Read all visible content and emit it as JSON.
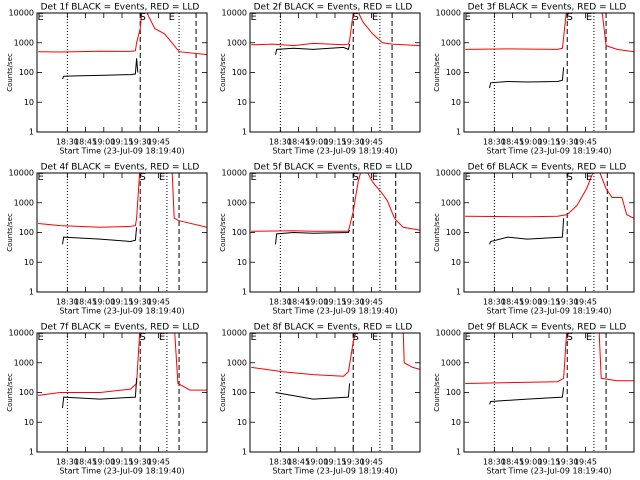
{
  "chart_data": [
    {
      "type": "line",
      "title": "Det 1f BLACK = Events, RED = LLD",
      "ylabel": "Counts/sec",
      "xlabel": "Start Time (23-Jul-09 18:19:40)",
      "xlim": [
        "18:05",
        "20:25"
      ],
      "xticks": [
        "18:30",
        "18:45",
        "19:00",
        "19:15",
        "19:30",
        "19:45"
      ],
      "ylim": [
        1,
        10000
      ],
      "yticks": [
        1,
        10,
        100,
        1000,
        10000
      ],
      "log_y": true,
      "vlines": [
        {
          "x": "18:30",
          "style": "dotted"
        },
        {
          "x": "19:30",
          "style": "dashed"
        },
        {
          "x": "20:02",
          "style": "dotted"
        },
        {
          "x": "20:16",
          "style": "dashed"
        }
      ],
      "annotations": [
        {
          "text": "E",
          "x": "18:08"
        },
        {
          "text": "S",
          "x": "19:32"
        },
        {
          "text": "E",
          "x": "19:56"
        }
      ],
      "series": [
        {
          "color": "#ff0000",
          "x": [
            "18:06",
            "18:24",
            "18:57",
            "19:22",
            "19:26",
            "19:27",
            "19:30",
            "19:32",
            "19:42",
            "19:50",
            "19:58",
            "20:02",
            "20:25"
          ],
          "values": [
            500,
            490,
            520,
            510,
            540,
            1000,
            3000,
            20000,
            3000,
            2000,
            800,
            500,
            400
          ]
        },
        {
          "color": "#000000",
          "x": [
            "18:26",
            "18:27",
            "18:41",
            "18:57",
            "19:22",
            "19:26",
            "19:27",
            "19:28"
          ],
          "values": [
            60,
            75,
            78,
            80,
            85,
            90,
            300,
            100
          ]
        }
      ]
    },
    {
      "type": "line",
      "title": "Det 2f BLACK = Events, RED = LLD",
      "ylabel": "Counts/sec",
      "xlabel": "Start Time (23-Jul-09 18:19:40)",
      "xlim": [
        "18:05",
        "20:25"
      ],
      "xticks": [
        "18:30",
        "18:45",
        "19:00",
        "19:15",
        "19:30",
        "19:45"
      ],
      "ylim": [
        1,
        10000
      ],
      "yticks": [
        1,
        10,
        100,
        1000,
        10000
      ],
      "log_y": true,
      "vlines": [
        {
          "x": "18:30",
          "style": "dotted"
        },
        {
          "x": "19:30",
          "style": "dashed"
        },
        {
          "x": "19:52",
          "style": "dotted"
        },
        {
          "x": "20:02",
          "style": "dashed"
        }
      ],
      "annotations": [
        {
          "text": "E",
          "x": "18:08"
        },
        {
          "text": "S",
          "x": "19:32"
        },
        {
          "text": "E",
          "x": "19:48"
        }
      ],
      "series": [
        {
          "color": "#ff0000",
          "x": [
            "18:06",
            "18:24",
            "18:41",
            "18:57",
            "19:22",
            "19:26",
            "19:27",
            "19:31",
            "19:38",
            "19:46",
            "19:54",
            "20:02",
            "20:25"
          ],
          "values": [
            850,
            900,
            800,
            950,
            850,
            900,
            1200,
            20000,
            5000,
            2000,
            1000,
            900,
            800
          ]
        },
        {
          "color": "#000000",
          "x": [
            "18:26",
            "18:27",
            "18:41",
            "18:57",
            "19:22",
            "19:26",
            "19:27"
          ],
          "values": [
            400,
            600,
            650,
            600,
            700,
            600,
            900
          ]
        }
      ]
    },
    {
      "type": "line",
      "title": "Det 3f BLACK = Events, RED = LLD",
      "ylabel": "Counts/sec",
      "xlabel": "Start Time (23-Jul-09 18:19:40)",
      "xlim": [
        "18:05",
        "20:25"
      ],
      "xticks": [
        "18:30",
        "18:45",
        "19:00",
        "19:15",
        "19:30",
        "19:45"
      ],
      "ylim": [
        1,
        10000
      ],
      "yticks": [
        1,
        10,
        100,
        1000,
        10000
      ],
      "log_y": true,
      "vlines": [
        {
          "x": "18:30",
          "style": "dotted"
        },
        {
          "x": "19:30",
          "style": "dashed"
        },
        {
          "x": "19:52",
          "style": "dotted"
        },
        {
          "x": "20:02",
          "style": "dashed"
        }
      ],
      "annotations": [
        {
          "text": "E",
          "x": "18:08"
        },
        {
          "text": "S",
          "x": "19:32"
        },
        {
          "text": "E",
          "x": "19:48"
        }
      ],
      "series": [
        {
          "color": "#ff0000",
          "x": [
            "18:06",
            "18:41",
            "19:22",
            "19:26",
            "19:27",
            "19:30",
            "19:58",
            "20:02",
            "20:11",
            "20:25"
          ],
          "values": [
            600,
            620,
            600,
            650,
            1500,
            20000,
            20000,
            800,
            600,
            500
          ]
        },
        {
          "color": "#000000",
          "x": [
            "18:26",
            "18:27",
            "18:41",
            "18:57",
            "19:22",
            "19:26",
            "19:27"
          ],
          "values": [
            30,
            45,
            50,
            48,
            50,
            55,
            150
          ]
        }
      ]
    },
    {
      "type": "line",
      "title": "Det 4f BLACK = Events, RED = LLD",
      "ylabel": "Counts/sec",
      "xlabel": "Start Time (23-Jul-09 18:19:40)",
      "xlim": [
        "18:05",
        "20:25"
      ],
      "xticks": [
        "18:30",
        "18:45",
        "19:00",
        "19:15",
        "19:30",
        "19:45"
      ],
      "ylim": [
        1,
        10000
      ],
      "yticks": [
        1,
        10,
        100,
        1000,
        10000
      ],
      "log_y": true,
      "vlines": [
        {
          "x": "18:30",
          "style": "dotted"
        },
        {
          "x": "19:30",
          "style": "dashed"
        },
        {
          "x": "19:52",
          "style": "dotted"
        },
        {
          "x": "20:02",
          "style": "dashed"
        }
      ],
      "annotations": [
        {
          "text": "E",
          "x": "18:08"
        },
        {
          "text": "S",
          "x": "19:32"
        },
        {
          "text": "E",
          "x": "19:48"
        }
      ],
      "series": [
        {
          "color": "#ff0000",
          "x": [
            "18:06",
            "18:24",
            "18:57",
            "19:22",
            "19:26",
            "19:27",
            "19:30",
            "19:56",
            "19:58",
            "20:02",
            "20:25"
          ],
          "values": [
            200,
            170,
            150,
            160,
            170,
            300,
            20000,
            20000,
            300,
            250,
            150
          ]
        },
        {
          "color": "#000000",
          "x": [
            "18:26",
            "18:27",
            "18:57",
            "19:22",
            "19:26",
            "19:27"
          ],
          "values": [
            40,
            70,
            60,
            50,
            55,
            150
          ]
        }
      ]
    },
    {
      "type": "line",
      "title": "Det 5f BLACK = Events, RED = LLD",
      "ylabel": "Counts/sec",
      "xlabel": "Start Time (23-Jul-09 18:19:40)",
      "xlim": [
        "18:05",
        "20:25"
      ],
      "xticks": [
        "18:30",
        "18:45",
        "19:00",
        "19:15",
        "19:30",
        "19:45"
      ],
      "ylim": [
        1,
        10000
      ],
      "yticks": [
        1,
        10,
        100,
        1000,
        10000
      ],
      "log_y": true,
      "vlines": [
        {
          "x": "18:30",
          "style": "dotted"
        },
        {
          "x": "19:30",
          "style": "dashed"
        },
        {
          "x": "19:52",
          "style": "dotted"
        },
        {
          "x": "20:05",
          "style": "dashed"
        }
      ],
      "annotations": [
        {
          "text": "E",
          "x": "18:08"
        },
        {
          "text": "S",
          "x": "19:32"
        },
        {
          "text": "E",
          "x": "19:48"
        }
      ],
      "series": [
        {
          "color": "#ff0000",
          "x": [
            "18:06",
            "18:41",
            "18:57",
            "19:26",
            "19:30",
            "19:34",
            "19:38",
            "19:46",
            "19:54",
            "19:58",
            "20:04",
            "20:11",
            "20:25"
          ],
          "values": [
            110,
            115,
            110,
            110,
            500,
            5000,
            20000,
            5000,
            2000,
            1200,
            300,
            150,
            120
          ]
        },
        {
          "color": "#000000",
          "x": [
            "18:26",
            "18:27",
            "18:41",
            "18:57",
            "19:26",
            "19:27"
          ],
          "values": [
            40,
            90,
            100,
            95,
            100,
            120
          ]
        }
      ]
    },
    {
      "type": "line",
      "title": "Det 6f BLACK = Events, RED = LLD",
      "ylabel": "Counts/sec",
      "xlabel": "Start Time (23-Jul-09 18:19:40)",
      "xlim": [
        "18:05",
        "20:25"
      ],
      "xticks": [
        "18:30",
        "18:45",
        "19:00",
        "19:15",
        "19:30",
        "19:45"
      ],
      "ylim": [
        1,
        10000
      ],
      "yticks": [
        1,
        10,
        100,
        1000,
        10000
      ],
      "log_y": true,
      "vlines": [
        {
          "x": "18:30",
          "style": "dotted"
        },
        {
          "x": "19:30",
          "style": "dashed"
        },
        {
          "x": "19:52",
          "style": "dotted"
        },
        {
          "x": "20:03",
          "style": "dashed"
        }
      ],
      "annotations": [
        {
          "text": "E",
          "x": "18:08"
        },
        {
          "text": "S",
          "x": "19:32"
        },
        {
          "text": "E",
          "x": "19:48"
        }
      ],
      "series": [
        {
          "color": "#ff0000",
          "x": [
            "18:06",
            "18:57",
            "19:22",
            "19:30",
            "19:38",
            "19:46",
            "19:54",
            "20:02",
            "20:07",
            "20:15",
            "20:19",
            "20:25"
          ],
          "values": [
            350,
            340,
            350,
            400,
            800,
            3000,
            20000,
            3000,
            1500,
            1500,
            400,
            300
          ]
        },
        {
          "color": "#000000",
          "x": [
            "18:26",
            "18:27",
            "18:41",
            "18:57",
            "19:26",
            "19:27"
          ],
          "values": [
            40,
            50,
            70,
            60,
            70,
            300
          ]
        }
      ]
    },
    {
      "type": "line",
      "title": "Det 7f BLACK = Events, RED = LLD",
      "ylabel": "Counts/sec",
      "xlabel": "Start Time (23-Jul-09 18:19:40)",
      "xlim": [
        "18:05",
        "20:25"
      ],
      "xticks": [
        "18:30",
        "18:45",
        "19:00",
        "19:15",
        "19:30",
        "19:45"
      ],
      "ylim": [
        1,
        10000
      ],
      "yticks": [
        1,
        10,
        100,
        1000,
        10000
      ],
      "log_y": true,
      "vlines": [
        {
          "x": "18:30",
          "style": "dotted"
        },
        {
          "x": "19:30",
          "style": "dashed"
        },
        {
          "x": "19:52",
          "style": "dotted"
        },
        {
          "x": "20:02",
          "style": "dashed"
        }
      ],
      "annotations": [
        {
          "text": "E",
          "x": "18:08"
        },
        {
          "text": "S",
          "x": "19:32"
        },
        {
          "text": "E",
          "x": "19:48"
        }
      ],
      "series": [
        {
          "color": "#ff0000",
          "x": [
            "18:06",
            "18:24",
            "18:57",
            "19:22",
            "19:27",
            "19:30",
            "19:58",
            "20:01",
            "20:11",
            "20:25"
          ],
          "values": [
            80,
            100,
            100,
            130,
            200,
            20000,
            20000,
            200,
            120,
            120
          ]
        },
        {
          "color": "#000000",
          "x": [
            "18:26",
            "18:27",
            "18:57",
            "19:26",
            "19:27"
          ],
          "values": [
            30,
            70,
            60,
            70,
            300
          ]
        }
      ]
    },
    {
      "type": "line",
      "title": "Det 8f BLACK = Events, RED = LLD",
      "ylabel": "Counts/sec",
      "xlabel": "Start Time (23-Jul-09 18:19:40)",
      "xlim": [
        "18:05",
        "20:25"
      ],
      "xticks": [
        "18:30",
        "18:45",
        "19:00",
        "19:15",
        "19:30",
        "19:45"
      ],
      "ylim": [
        1,
        10000
      ],
      "yticks": [
        1,
        10,
        100,
        1000,
        10000
      ],
      "log_y": true,
      "vlines": [
        {
          "x": "18:30",
          "style": "dotted"
        },
        {
          "x": "19:30",
          "style": "dashed"
        },
        {
          "x": "19:52",
          "style": "dotted"
        },
        {
          "x": "20:02",
          "style": "dashed"
        }
      ],
      "annotations": [
        {
          "text": "E",
          "x": "18:08"
        },
        {
          "text": "S",
          "x": "19:32"
        },
        {
          "text": "E",
          "x": "19:48"
        }
      ],
      "series": [
        {
          "color": "#ff0000",
          "x": [
            "18:06",
            "18:32",
            "18:57",
            "19:22",
            "19:26",
            "19:30",
            "19:34",
            "20:11",
            "20:12",
            "20:19",
            "20:25"
          ],
          "values": [
            700,
            500,
            400,
            350,
            500,
            5000,
            20000,
            20000,
            1000,
            700,
            600
          ]
        },
        {
          "color": "#000000",
          "x": [
            "18:26",
            "18:57",
            "19:26",
            "19:27"
          ],
          "values": [
            100,
            60,
            70,
            200
          ]
        }
      ]
    },
    {
      "type": "line",
      "title": "Det 9f BLACK = Events, RED = LLD",
      "ylabel": "Counts/sec",
      "xlabel": "Start Time (23-Jul-09 18:19:40)",
      "xlim": [
        "18:05",
        "20:25"
      ],
      "xticks": [
        "18:30",
        "18:45",
        "19:00",
        "19:15",
        "19:30",
        "19:45"
      ],
      "ylim": [
        1,
        10000
      ],
      "yticks": [
        1,
        10,
        100,
        1000,
        10000
      ],
      "log_y": true,
      "vlines": [
        {
          "x": "18:30",
          "style": "dotted"
        },
        {
          "x": "19:30",
          "style": "dashed"
        },
        {
          "x": "19:52",
          "style": "dotted"
        },
        {
          "x": "20:02",
          "style": "dashed"
        }
      ],
      "annotations": [
        {
          "text": "E",
          "x": "18:08"
        },
        {
          "text": "S",
          "x": "19:32"
        },
        {
          "text": "E",
          "x": "19:48"
        }
      ],
      "series": [
        {
          "color": "#ff0000",
          "x": [
            "18:06",
            "19:22",
            "19:27",
            "19:30",
            "19:56",
            "19:58",
            "20:11",
            "20:25"
          ],
          "values": [
            200,
            230,
            300,
            20000,
            20000,
            300,
            250,
            250
          ]
        },
        {
          "color": "#000000",
          "x": [
            "18:26",
            "18:27",
            "18:57",
            "19:26",
            "19:27"
          ],
          "values": [
            40,
            50,
            60,
            70,
            150
          ]
        }
      ]
    }
  ]
}
